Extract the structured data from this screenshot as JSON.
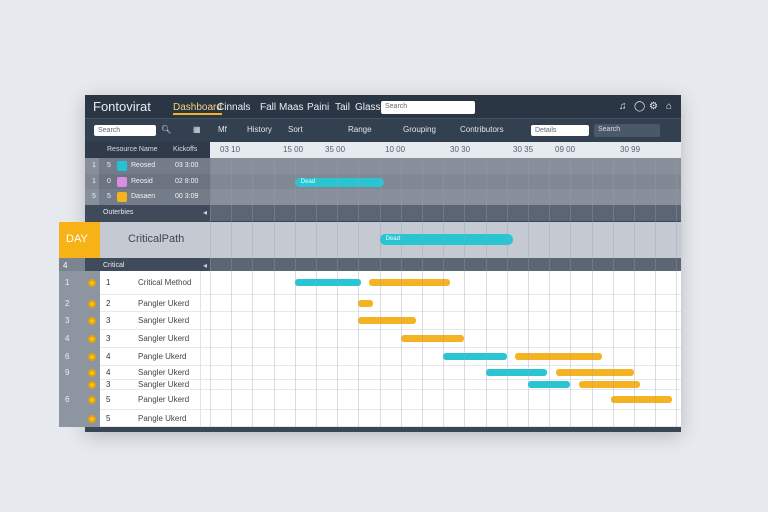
{
  "app": {
    "title": "Fontovirat"
  },
  "menu": [
    "Dashboard",
    "Cinnals",
    "Fall",
    "Maas",
    "Paini",
    "Tail",
    "Glass"
  ],
  "search": {
    "placeholder": "Search"
  },
  "toolbar": {
    "search_placeholder": "Search",
    "items": [
      "Mf",
      "History",
      "Sort",
      "Range",
      "Grouping",
      "Contributors"
    ],
    "select_value": "Details",
    "filter_placeholder": "Search"
  },
  "header": {
    "col_name": "Resource Name",
    "col_date": "Kickoffs",
    "ticks": [
      "03 10",
      "15 00",
      "35 00",
      "10 00",
      "30 30",
      "30 35",
      "09 00",
      "30 99"
    ]
  },
  "resources": [
    {
      "num": "1",
      "idx": "5",
      "name": "Reosed",
      "date": "03 3:00",
      "color": "#22c3d6",
      "bar": {
        "label": "",
        "start": null,
        "end": null
      }
    },
    {
      "num": "1",
      "idx": "0",
      "name": "Reosid",
      "date": "02 8:00",
      "color": "#d98ee6",
      "bar": {
        "label": "Dead",
        "start": 4,
        "end": 8.2
      }
    },
    {
      "num": "5",
      "idx": "5",
      "name": "Dasaen",
      "date": "00 3:09",
      "color": "#f2b51c",
      "bar": {
        "label": "",
        "start": null,
        "end": null
      }
    }
  ],
  "group1": {
    "label": "Outerbies"
  },
  "band": {
    "badge": "DAY",
    "label": "CriticalPath",
    "bar": {
      "label": "Dead",
      "start": 8,
      "end": 14.3
    }
  },
  "group2": {
    "num": "4",
    "label": "Critical"
  },
  "colors": {
    "cyan": "#29c5d3",
    "orange": "#f5b324",
    "badge": "#f7b216"
  },
  "tasks": [
    {
      "side": "1",
      "num": "1",
      "name": "Critical Method",
      "cyan": [
        4,
        7.1
      ],
      "orange": [
        7.5,
        11.3
      ]
    },
    {
      "side": "2",
      "num": "2",
      "name": "Pangler Ukerd",
      "cyan": null,
      "orange": [
        7,
        7.7
      ]
    },
    {
      "side": "3",
      "num": "3",
      "name": "Sangler Ukerd",
      "cyan": null,
      "orange": [
        7,
        9.7
      ]
    },
    {
      "side": "4",
      "num": "3",
      "name": "Sangler Ukerd",
      "cyan": null,
      "orange": [
        9,
        12
      ]
    },
    {
      "side": "6",
      "num": "4",
      "name": "Pangle Ukerd",
      "cyan": [
        11,
        14
      ],
      "orange": [
        14.4,
        18.5
      ]
    },
    {
      "side": "9",
      "num": "4",
      "name": "Sangler Ukerd",
      "cyan": [
        13,
        15.9
      ],
      "orange": [
        16.3,
        20
      ]
    },
    {
      "side": "",
      "num": "3",
      "name": "Sangler Ukerd",
      "cyan": [
        15,
        17
      ],
      "orange": [
        17.4,
        20.3
      ]
    },
    {
      "side": "6",
      "num": "5",
      "name": "Pangler Ukerd",
      "cyan": null,
      "orange": [
        18.9,
        21.8
      ]
    },
    {
      "side": "",
      "num": "5",
      "name": "Pangle Ukerd",
      "cyan": null,
      "orange": null
    }
  ]
}
